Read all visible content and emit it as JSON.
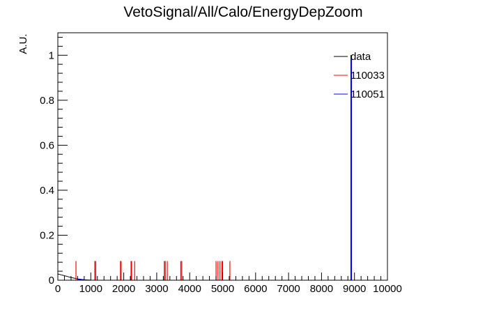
{
  "chart_data": {
    "type": "histogram",
    "title": "VetoSignal/All/Calo/EnergyDepZoom",
    "xlabel": "",
    "ylabel": "A.U.",
    "xlim": [
      0,
      10000
    ],
    "ylim": [
      0,
      1.1
    ],
    "x_ticks": [
      0,
      1000,
      2000,
      3000,
      4000,
      5000,
      6000,
      7000,
      8000,
      9000,
      10000
    ],
    "y_ticks": [
      0,
      0.2,
      0.4,
      0.6,
      0.8,
      1
    ],
    "x_tick_labels": [
      "0",
      "1000",
      "2000",
      "3000",
      "4000",
      "5000",
      "6000",
      "7000",
      "8000",
      "9000",
      "10000"
    ],
    "y_tick_labels": [
      "0",
      "0.2",
      "0.4",
      "0.6",
      "0.8",
      "1"
    ],
    "legend_position": "top-right",
    "series": [
      {
        "name": "data",
        "color": "#000000",
        "kind": "curve",
        "points": [
          [
            0,
            0.028
          ],
          [
            100,
            0.024
          ],
          [
            200,
            0.02
          ],
          [
            300,
            0.016
          ],
          [
            400,
            0.012
          ],
          [
            500,
            0.009
          ],
          [
            600,
            0.006
          ],
          [
            700,
            0.004
          ],
          [
            800,
            0.002
          ],
          [
            900,
            0.001
          ],
          [
            1000,
            0.0
          ]
        ]
      },
      {
        "name": "110033",
        "color": "#ff0000",
        "kind": "spikes",
        "x": [
          550,
          1120,
          1150,
          1900,
          1920,
          2220,
          2240,
          2330,
          3230,
          3260,
          3320,
          3730,
          3760,
          4800,
          4860,
          4920,
          4980,
          5000,
          5220,
          8900
        ],
        "values": [
          0.085,
          0.085,
          0.085,
          0.085,
          0.085,
          0.085,
          0.085,
          0.085,
          0.085,
          0.085,
          0.085,
          0.085,
          0.085,
          0.085,
          0.085,
          0.085,
          0.085,
          0.085,
          0.085,
          1.0
        ]
      },
      {
        "name": "110051",
        "color": "#0000ff",
        "kind": "spikes",
        "x": [
          8900
        ],
        "values": [
          1.0
        ],
        "baseline_curve": [
          [
            600,
            0.004
          ],
          [
            700,
            0.003
          ],
          [
            800,
            0.002
          ],
          [
            900,
            0.001
          ],
          [
            1000,
            0.0
          ]
        ]
      }
    ]
  }
}
